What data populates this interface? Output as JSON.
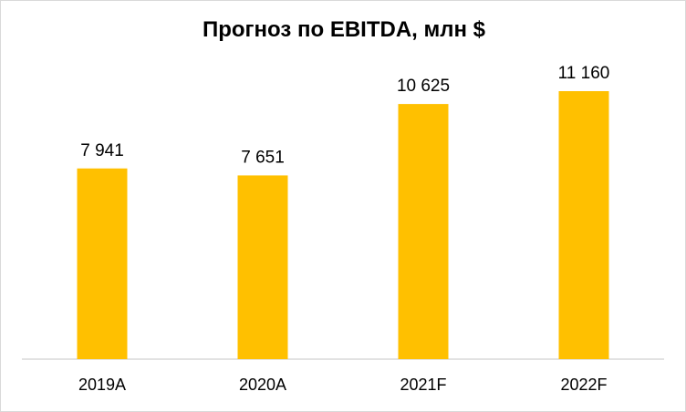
{
  "chart_data": {
    "type": "bar",
    "title": "Прогноз по EBITDA, млн $",
    "categories": [
      "2019A",
      "2020A",
      "2021F",
      "2022F"
    ],
    "values": [
      7941,
      7651,
      10625,
      11160
    ],
    "data_labels": [
      "7 941",
      "7 651",
      "10 625",
      "11 160"
    ],
    "ylim": [
      0,
      12000
    ],
    "xlabel": "",
    "ylabel": "",
    "grid": false,
    "legend": "none",
    "bar_color": "#FFC000",
    "axis_color": "#d9d9d9"
  }
}
